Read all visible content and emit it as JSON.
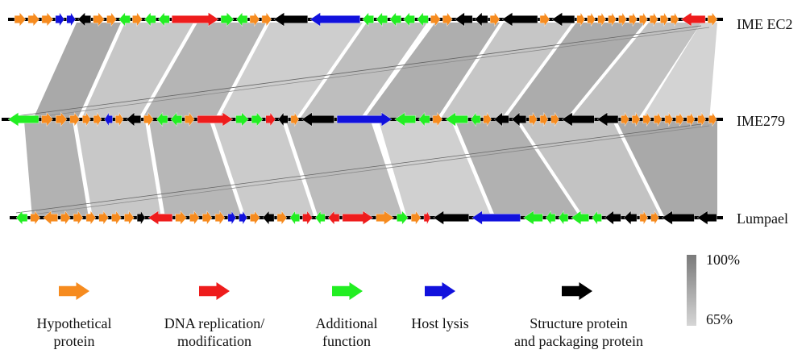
{
  "genomes": [
    {
      "name": "IME EC2"
    },
    {
      "name": "IME279"
    },
    {
      "name": "Lumpael"
    }
  ],
  "legend": [
    {
      "category": "hypothetical",
      "color": "#f68b1f",
      "line1": "Hypothetical",
      "line2": "protein"
    },
    {
      "category": "dna",
      "color": "#ee1c1c",
      "line1": "DNA replication/",
      "line2": "modification"
    },
    {
      "category": "additional",
      "color": "#22ee22",
      "line1": "Additional",
      "line2": "function"
    },
    {
      "category": "lysis",
      "color": "#1111dd",
      "line1": "Host lysis",
      "line2": ""
    },
    {
      "category": "structure",
      "color": "#000000",
      "line1": "Structure protein",
      "line2": "and packaging protein"
    }
  ],
  "scale": {
    "max": "100%",
    "min": "65%",
    "dark": "#7a7a7a",
    "light": "#d6d6d6"
  }
}
